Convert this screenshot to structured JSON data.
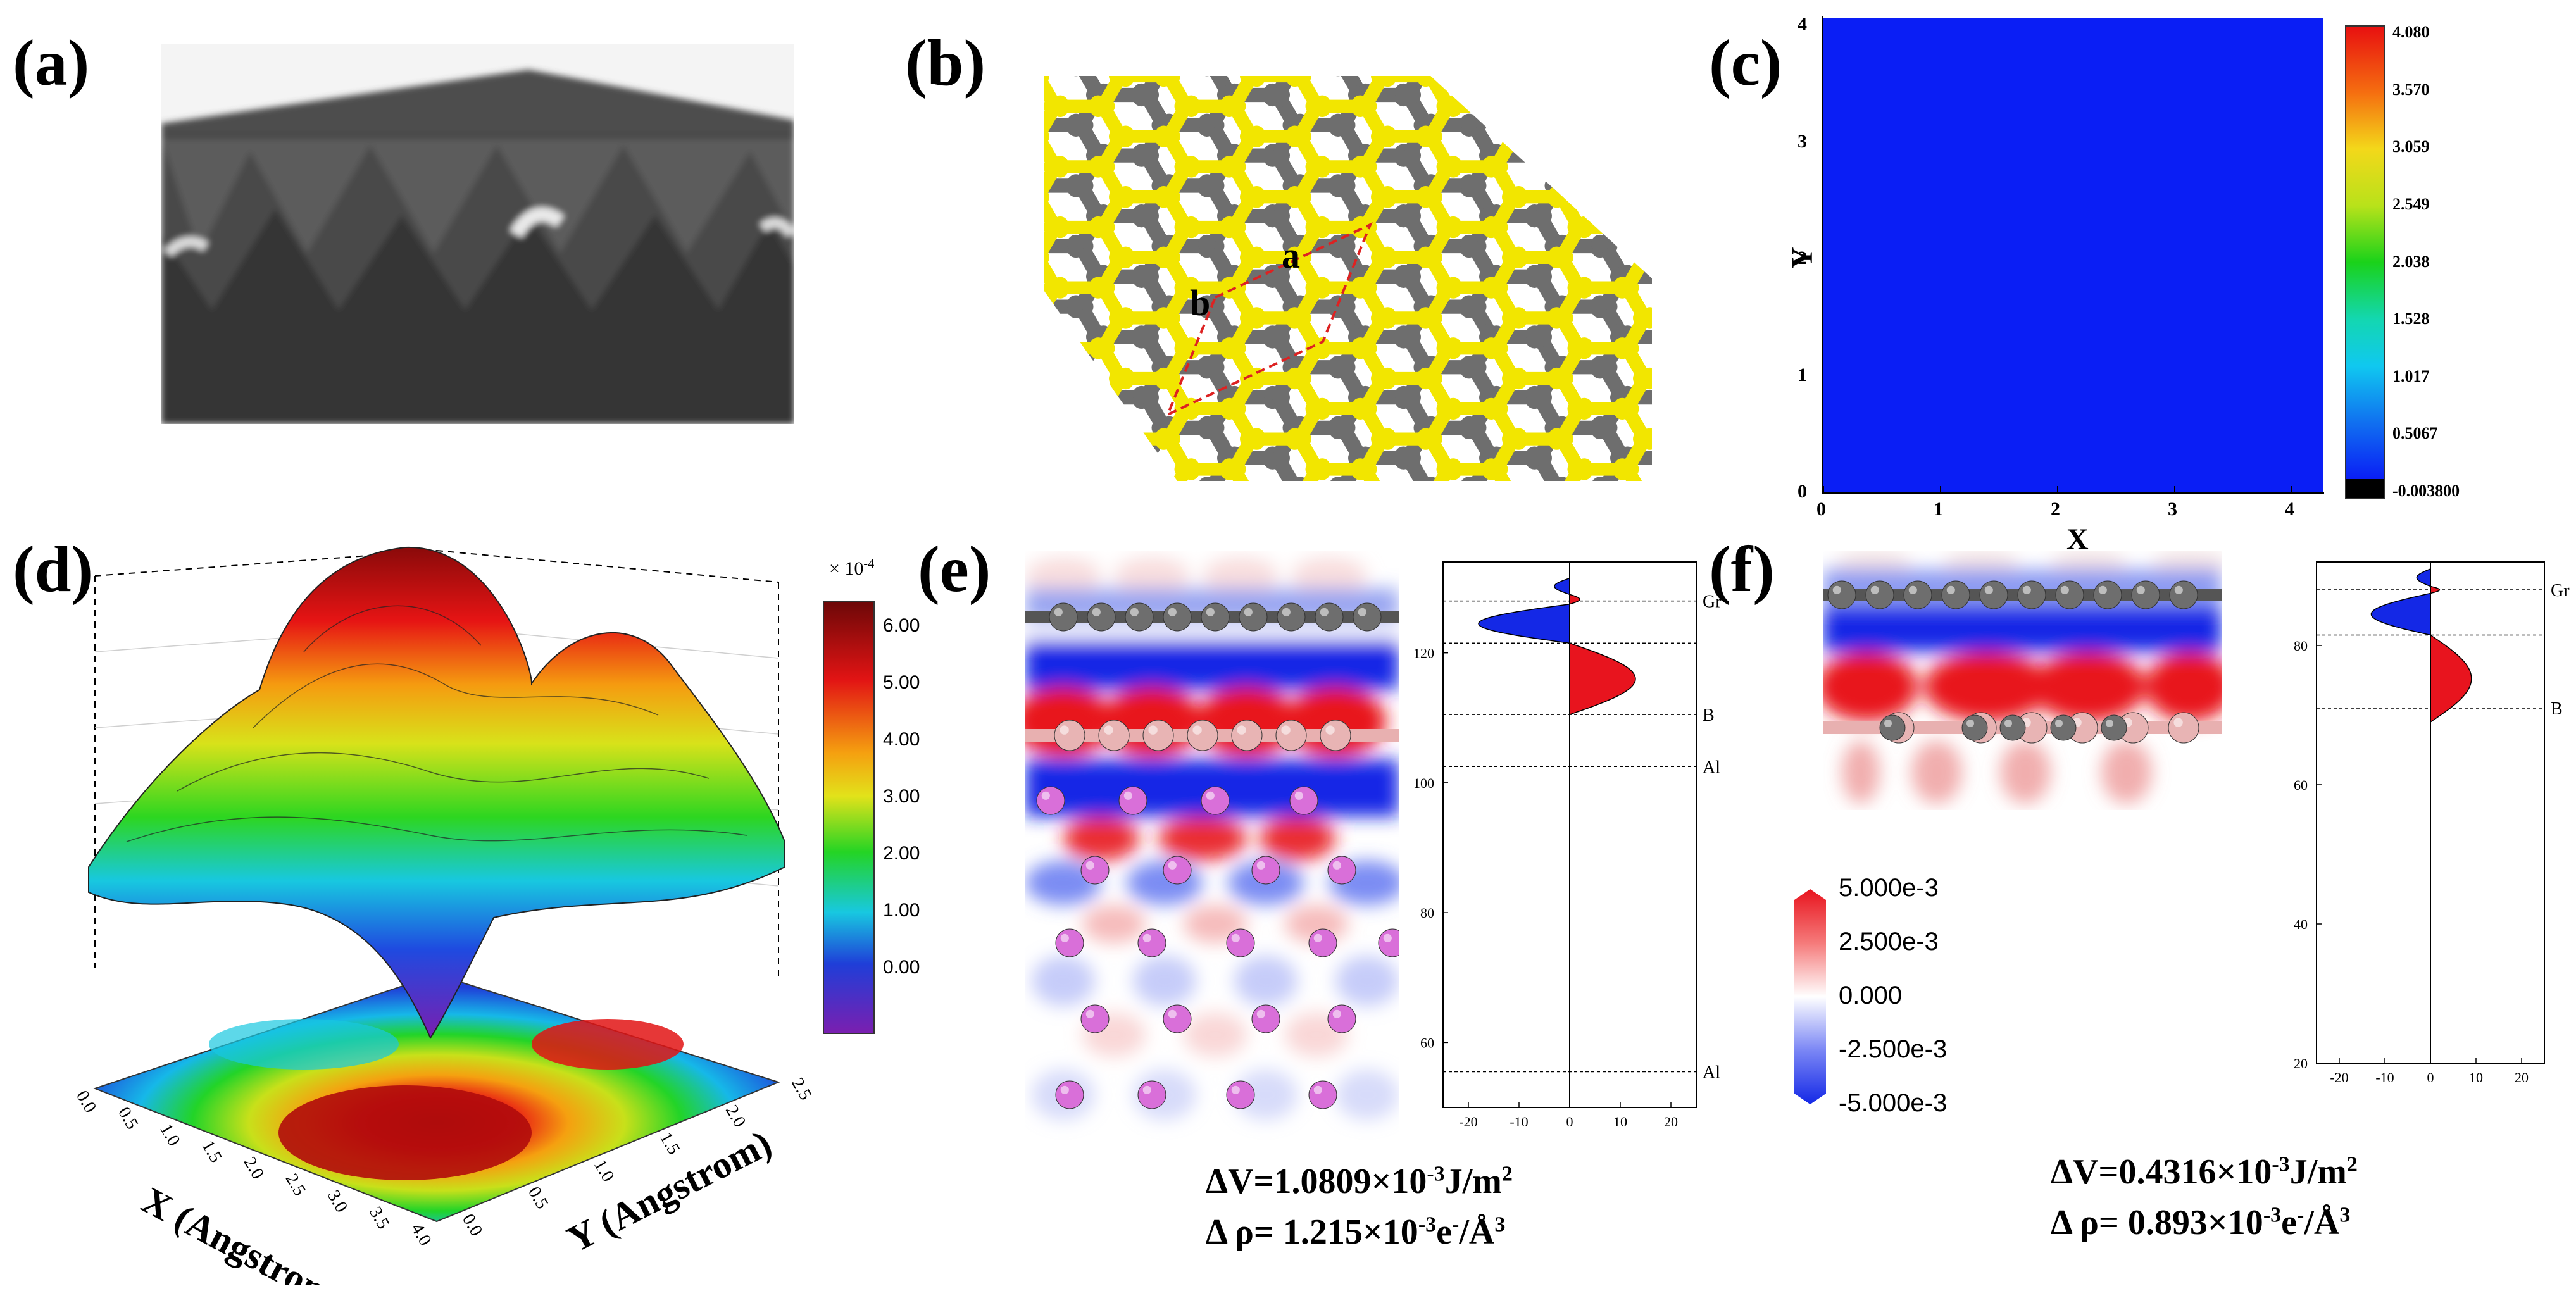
{
  "panels": {
    "a": {
      "letter": "(a)"
    },
    "b": {
      "letter": "(b)",
      "label_a": "a",
      "label_b": "b"
    },
    "c": {
      "letter": "(c)",
      "xlabel": "X",
      "ylabel": "Y",
      "ticks_x": [
        "0",
        "1",
        "2",
        "3",
        "4"
      ],
      "ticks_y": [
        "0",
        "1",
        "2",
        "3",
        "4"
      ],
      "colorbar": [
        "4.080",
        "3.570",
        "3.059",
        "2.549",
        "2.038",
        "1.528",
        "1.017",
        "0.5067",
        "-0.003800"
      ]
    },
    "d": {
      "letter": "(d)",
      "scale": "× 10",
      "scale_exp": "-4",
      "colorbar": [
        "6.00",
        "5.00",
        "4.00",
        "3.00",
        "2.00",
        "1.00",
        "0.00"
      ],
      "xlabel": "X (Angstrom)",
      "ylabel": "Y (Angstrom)",
      "ticks_x": [
        "0.0",
        "0.5",
        "1.0",
        "1.5",
        "2.0",
        "2.5",
        "3.0",
        "3.5",
        "4.0"
      ],
      "ticks_y": [
        "0.0",
        "0.5",
        "1.0",
        "1.5",
        "2.0",
        "2.5"
      ]
    },
    "e": {
      "letter": "(e)",
      "profile_labels": [
        "Gr",
        "B",
        "Al",
        "Al"
      ],
      "ticks_y": [
        "120",
        "100",
        "80",
        "60"
      ],
      "ticks_x": [
        "-20",
        "-10",
        "0",
        "10",
        "20"
      ],
      "eq1_pre": "ΔV=1.0809×10",
      "eq1_exp": "-3",
      "eq1_post": "J/m",
      "eq1_exp2": "2",
      "eq2_pre": "Δ ρ=  1.215×10",
      "eq2_exp": "-3",
      "eq2_post": "e",
      "eq2_exp2": "-",
      "eq2_post2": "/Å",
      "eq2_exp3": "3"
    },
    "f": {
      "letter": "(f)",
      "profile_labels": [
        "Gr",
        "B"
      ],
      "ticks_y": [
        "80",
        "60",
        "40",
        "20"
      ],
      "ticks_x": [
        "-20",
        "-10",
        "0",
        "10",
        "20"
      ],
      "eq1_pre": "ΔV=0.4316×10",
      "eq1_exp": "-3",
      "eq1_post": "J/m",
      "eq1_exp2": "2",
      "eq2_pre": "Δ ρ=  0.893×10",
      "eq2_exp": "-3",
      "eq2_post": "e",
      "eq2_exp2": "-",
      "eq2_post2": "/Å",
      "eq2_exp3": "3"
    }
  },
  "shared_colorbar": [
    "5.000e-3",
    "2.500e-3",
    "0.000",
    "-2.500e-3",
    "-5.000e-3"
  ],
  "colors": {
    "graphene": "#6e6e6e",
    "bonds_yellow": "#f2e600",
    "boron": "#e8b4b4",
    "aluminum": "#d96fd9",
    "pos": "#e8141e",
    "neg": "#1428e6",
    "field_blue": "#0a1ef5"
  }
}
